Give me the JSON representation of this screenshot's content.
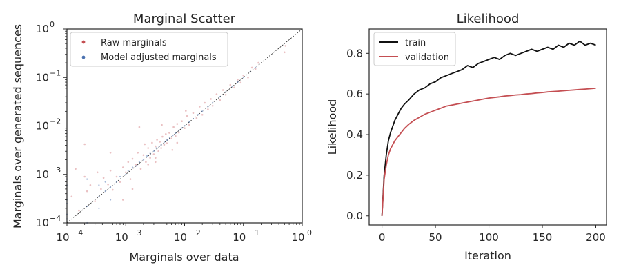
{
  "chart_data": [
    {
      "type": "scatter",
      "title": "Marginal Scatter",
      "xlabel": "Marginals over data",
      "ylabel": "Marginals over generated sequences",
      "xscale": "log",
      "yscale": "log",
      "xlim": [
        0.0001,
        1
      ],
      "ylim": [
        0.0001,
        1
      ],
      "xticks": [
        {
          "base": "10",
          "exp": "−4"
        },
        {
          "base": "10",
          "exp": "−3"
        },
        {
          "base": "10",
          "exp": "−2"
        },
        {
          "base": "10",
          "exp": "−1"
        },
        {
          "base": "10",
          "exp": "0"
        }
      ],
      "yticks": [
        {
          "base": "10",
          "exp": "−4"
        },
        {
          "base": "10",
          "exp": "−3"
        },
        {
          "base": "10",
          "exp": "−2"
        },
        {
          "base": "10",
          "exp": "−1"
        },
        {
          "base": "10",
          "exp": "0"
        }
      ],
      "reference_line": "y = x (dashed)",
      "legend_position": "upper-left",
      "series": [
        {
          "name": "Raw marginals",
          "color": "#c44e52",
          "points": [
            [
              0.00012,
              0.00035
            ],
            [
              0.00014,
              0.0013
            ],
            [
              0.00016,
              0.00018
            ],
            [
              0.0002,
              0.0009
            ],
            [
              0.00022,
              0.00045
            ],
            [
              0.00025,
              0.0006
            ],
            [
              0.0003,
              0.00028
            ],
            [
              0.00033,
              0.0011
            ],
            [
              0.00038,
              0.0005
            ],
            [
              0.00042,
              0.00085
            ],
            [
              0.0005,
              0.00062
            ],
            [
              0.00055,
              0.0012
            ],
            [
              0.0006,
              0.00048
            ],
            [
              0.0007,
              0.0009
            ],
            [
              0.0008,
              0.0007
            ],
            [
              0.0009,
              0.0014
            ],
            [
              0.001,
              0.0011
            ],
            [
              0.0011,
              0.0018
            ],
            [
              0.0012,
              0.0008
            ],
            [
              0.0013,
              0.0021
            ],
            [
              0.0015,
              0.0016
            ],
            [
              0.0016,
              0.0028
            ],
            [
              0.0018,
              0.0013
            ],
            [
              0.002,
              0.0025
            ],
            [
              0.0022,
              0.0018
            ],
            [
              0.0024,
              0.0035
            ],
            [
              0.0026,
              0.0022
            ],
            [
              0.0028,
              0.0045
            ],
            [
              0.003,
              0.0026
            ],
            [
              0.0032,
              0.0038
            ],
            [
              0.0034,
              0.0052
            ],
            [
              0.0036,
              0.003
            ],
            [
              0.0038,
              0.0047
            ],
            [
              0.004,
              0.0035
            ],
            [
              0.0042,
              0.006
            ],
            [
              0.0045,
              0.0041
            ],
            [
              0.0048,
              0.0068
            ],
            [
              0.005,
              0.0044
            ],
            [
              0.0055,
              0.0072
            ],
            [
              0.006,
              0.0055
            ],
            [
              0.0065,
              0.0095
            ],
            [
              0.007,
              0.0062
            ],
            [
              0.0075,
              0.011
            ],
            [
              0.008,
              0.0073
            ],
            [
              0.009,
              0.0125
            ],
            [
              0.01,
              0.009
            ],
            [
              0.011,
              0.016
            ],
            [
              0.012,
              0.0105
            ],
            [
              0.014,
              0.0185
            ],
            [
              0.016,
              0.0145
            ],
            [
              0.018,
              0.025
            ],
            [
              0.02,
              0.017
            ],
            [
              0.022,
              0.03
            ],
            [
              0.025,
              0.022
            ],
            [
              0.028,
              0.036
            ],
            [
              0.03,
              0.026
            ],
            [
              0.035,
              0.045
            ],
            [
              0.04,
              0.034
            ],
            [
              0.045,
              0.055
            ],
            [
              0.05,
              0.044
            ],
            [
              0.06,
              0.07
            ],
            [
              0.07,
              0.062
            ],
            [
              0.08,
              0.09
            ],
            [
              0.09,
              0.078
            ],
            [
              0.1,
              0.11
            ],
            [
              0.12,
              0.1
            ],
            [
              0.14,
              0.16
            ],
            [
              0.16,
              0.15
            ],
            [
              0.18,
              0.2
            ],
            [
              0.5,
              0.33
            ],
            [
              0.52,
              0.45
            ],
            [
              0.0017,
              0.0095
            ],
            [
              0.0024,
              0.0016
            ],
            [
              0.0013,
              0.0005
            ],
            [
              0.0041,
              0.0105
            ],
            [
              0.0062,
              0.0032
            ],
            [
              0.0021,
              0.0042
            ],
            [
              0.0032,
              0.0018
            ],
            [
              0.0105,
              0.0205
            ],
            [
              0.0032,
              0.0022
            ],
            [
              0.0002,
              0.0042
            ],
            [
              0.00055,
              0.0028
            ],
            [
              0.0009,
              0.0003
            ],
            [
              0.0075,
              0.0045
            ]
          ]
        },
        {
          "name": "Model adjusted marginals",
          "color": "#4c72b0",
          "points": [
            [
              0.0001,
              0.00012
            ],
            [
              0.0001,
              0.00025
            ],
            [
              0.0001,
              0.0003
            ],
            [
              0.0001,
              0.0006
            ],
            [
              0.0001,
              0.0008
            ],
            [
              0.0001,
              0.00015
            ],
            [
              0.00022,
              0.00022
            ],
            [
              0.00022,
              0.0001
            ],
            [
              0.00022,
              0.0008
            ],
            [
              0.00035,
              0.00035
            ],
            [
              0.00035,
              0.0002
            ],
            [
              0.00035,
              0.0006
            ],
            [
              0.00045,
              0.00045
            ],
            [
              0.00045,
              0.0007
            ],
            [
              0.00055,
              0.00055
            ],
            [
              0.00055,
              0.0003
            ],
            [
              0.0007,
              0.0007
            ],
            [
              0.0008,
              0.0009
            ],
            [
              0.001,
              0.001
            ],
            [
              0.0011,
              0.0012
            ],
            [
              0.0013,
              0.0014
            ],
            [
              0.0015,
              0.0015
            ],
            [
              0.0017,
              0.0018
            ],
            [
              0.002,
              0.002
            ],
            [
              0.0023,
              0.0024
            ],
            [
              0.0026,
              0.0027
            ],
            [
              0.003,
              0.003
            ],
            [
              0.0033,
              0.0035
            ],
            [
              0.0037,
              0.0038
            ],
            [
              0.004,
              0.0041
            ],
            [
              0.0045,
              0.0046
            ],
            [
              0.005,
              0.0051
            ],
            [
              0.0056,
              0.0057
            ],
            [
              0.0063,
              0.0064
            ],
            [
              0.007,
              0.0071
            ],
            [
              0.008,
              0.0081
            ],
            [
              0.009,
              0.0091
            ],
            [
              0.01,
              0.0101
            ],
            [
              0.012,
              0.0121
            ],
            [
              0.014,
              0.0141
            ],
            [
              0.017,
              0.0171
            ],
            [
              0.02,
              0.0201
            ],
            [
              0.025,
              0.0251
            ],
            [
              0.03,
              0.0301
            ],
            [
              0.04,
              0.0401
            ],
            [
              0.05,
              0.0502
            ],
            [
              0.065,
              0.0651
            ],
            [
              0.08,
              0.0802
            ],
            [
              0.1,
              0.1002
            ],
            [
              0.13,
              0.1302
            ],
            [
              0.16,
              0.1602
            ]
          ]
        }
      ]
    },
    {
      "type": "line",
      "title": "Likelihood",
      "xlabel": "Iteration",
      "ylabel": "Likelihood",
      "xlim": [
        -12,
        210
      ],
      "ylim": [
        -0.045,
        0.92
      ],
      "xticks": [
        0,
        50,
        100,
        150,
        200
      ],
      "yticks": [
        "0.0",
        "0.2",
        "0.4",
        "0.6",
        "0.8"
      ],
      "legend_position": "upper-left",
      "series": [
        {
          "name": "train",
          "color": "#111111",
          "x": [
            0,
            2,
            4,
            6,
            8,
            10,
            12,
            15,
            18,
            21,
            25,
            30,
            35,
            40,
            45,
            50,
            55,
            60,
            65,
            70,
            75,
            80,
            85,
            90,
            95,
            100,
            105,
            110,
            115,
            120,
            125,
            130,
            135,
            140,
            145,
            150,
            155,
            160,
            165,
            170,
            175,
            180,
            185,
            190,
            195,
            200
          ],
          "y": [
            0.0,
            0.2,
            0.3,
            0.37,
            0.41,
            0.44,
            0.47,
            0.5,
            0.53,
            0.55,
            0.57,
            0.6,
            0.62,
            0.63,
            0.65,
            0.66,
            0.68,
            0.69,
            0.7,
            0.71,
            0.72,
            0.74,
            0.73,
            0.75,
            0.76,
            0.77,
            0.78,
            0.77,
            0.79,
            0.8,
            0.79,
            0.8,
            0.81,
            0.82,
            0.81,
            0.82,
            0.83,
            0.82,
            0.84,
            0.83,
            0.85,
            0.84,
            0.86,
            0.84,
            0.85,
            0.84
          ]
        },
        {
          "name": "validation",
          "color": "#c44e52",
          "x": [
            0,
            2,
            4,
            6,
            8,
            10,
            12,
            15,
            18,
            21,
            25,
            30,
            35,
            40,
            45,
            50,
            55,
            60,
            65,
            70,
            75,
            80,
            85,
            90,
            95,
            100,
            105,
            110,
            115,
            120,
            125,
            130,
            135,
            140,
            145,
            150,
            155,
            160,
            165,
            170,
            175,
            180,
            185,
            190,
            195,
            200
          ],
          "y": [
            0.0,
            0.18,
            0.25,
            0.3,
            0.33,
            0.35,
            0.37,
            0.39,
            0.41,
            0.43,
            0.45,
            0.47,
            0.485,
            0.5,
            0.51,
            0.52,
            0.53,
            0.54,
            0.545,
            0.55,
            0.555,
            0.56,
            0.565,
            0.57,
            0.575,
            0.58,
            0.583,
            0.586,
            0.59,
            0.592,
            0.595,
            0.597,
            0.6,
            0.602,
            0.605,
            0.607,
            0.61,
            0.612,
            0.614,
            0.616,
            0.618,
            0.62,
            0.622,
            0.624,
            0.626,
            0.628
          ]
        }
      ]
    }
  ]
}
